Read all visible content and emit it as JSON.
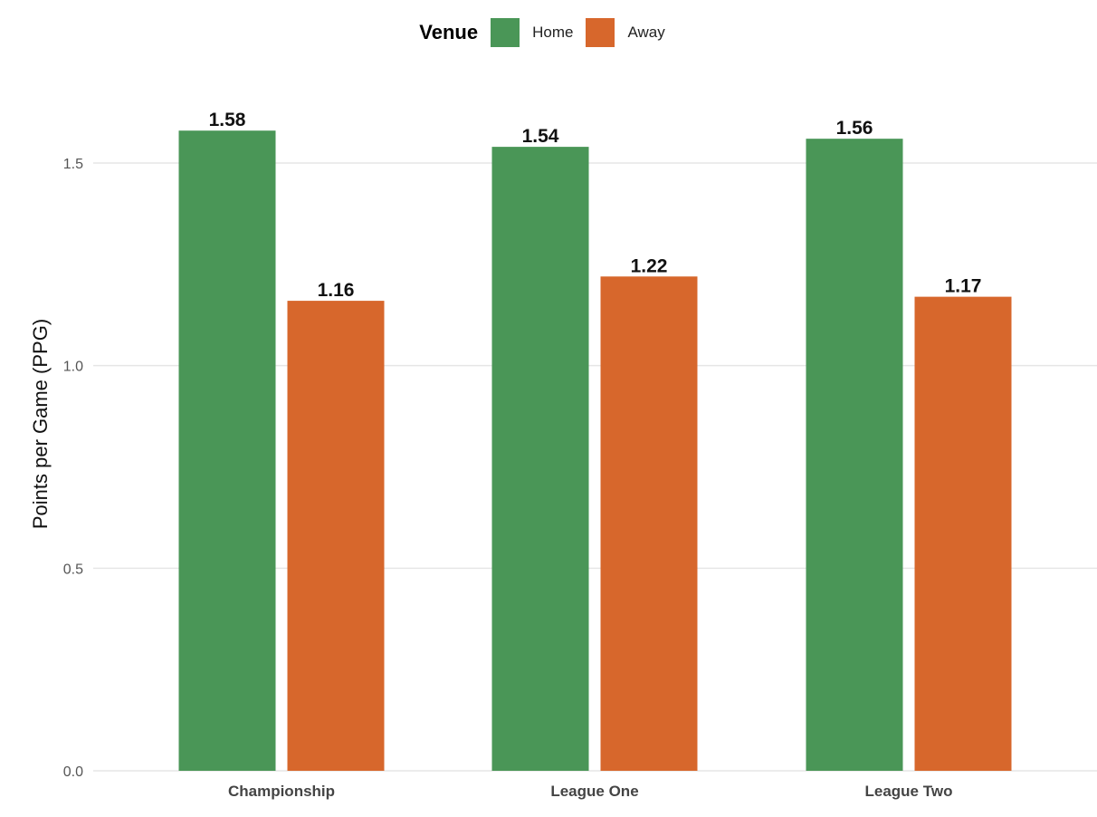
{
  "chart_data": {
    "type": "bar",
    "title": "",
    "xlabel": "",
    "ylabel": "Points per Game (PPG)",
    "ylim": [
      0,
      1.75
    ],
    "yticks": [
      0.0,
      0.5,
      1.0,
      1.5
    ],
    "ytick_labels": [
      "0.0",
      "0.5",
      "1.0",
      "1.5"
    ],
    "grid": "horizontal",
    "categories": [
      "Championship",
      "League One",
      "League Two"
    ],
    "legend": {
      "title": "Venue",
      "position": "top"
    },
    "series": [
      {
        "name": "Home",
        "color": "#4a9657",
        "values": [
          1.58,
          1.54,
          1.56
        ],
        "labels": [
          "1.58",
          "1.54",
          "1.56"
        ]
      },
      {
        "name": "Away",
        "color": "#d7672c",
        "values": [
          1.16,
          1.22,
          1.17
        ],
        "labels": [
          "1.16",
          "1.22",
          "1.17"
        ]
      }
    ]
  }
}
